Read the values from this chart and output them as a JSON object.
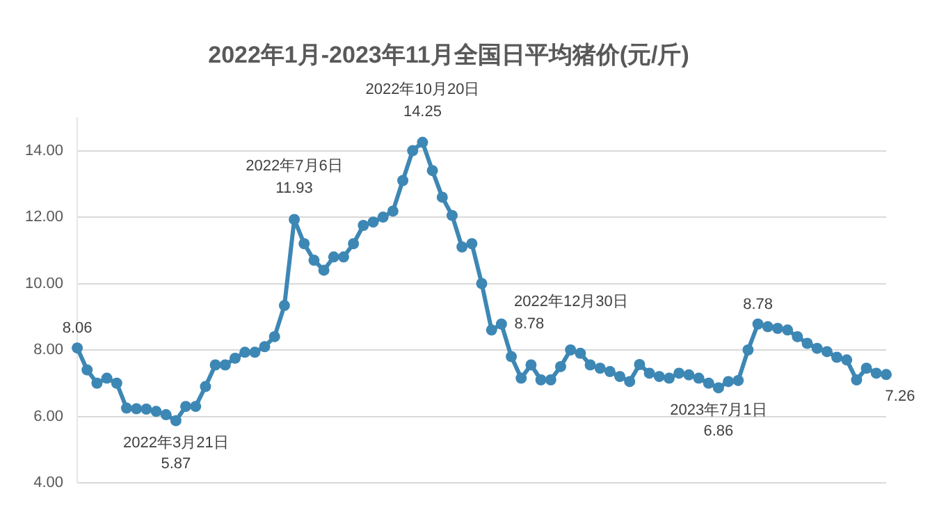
{
  "chart_data": {
    "type": "line",
    "title": "2022年1月-2023年11月全国日平均猪价(元/斤)",
    "categories": [
      null,
      null,
      null,
      null,
      null,
      null,
      null,
      null,
      null,
      null,
      null,
      null,
      null,
      null,
      null,
      null,
      null,
      null,
      null,
      null,
      null,
      null,
      null,
      null,
      null,
      null,
      null,
      null,
      null,
      null,
      null,
      null,
      null,
      null,
      null,
      null,
      null,
      null,
      null,
      null,
      null,
      null,
      null,
      null,
      null,
      null,
      null,
      null,
      null,
      null,
      null,
      null,
      null,
      null,
      null,
      null,
      null,
      null,
      null,
      null,
      null,
      null,
      null,
      null,
      null,
      null,
      null,
      null,
      null,
      null,
      null,
      null,
      null,
      null,
      null,
      null,
      null,
      null,
      null,
      null,
      null,
      null,
      null
    ],
    "values": [
      8.06,
      7.4,
      7.0,
      7.15,
      7.0,
      6.25,
      6.23,
      6.22,
      6.15,
      6.05,
      5.87,
      6.3,
      6.3,
      6.9,
      7.55,
      7.55,
      7.75,
      7.93,
      7.93,
      8.1,
      8.4,
      9.34,
      11.93,
      11.2,
      10.7,
      10.4,
      10.8,
      10.8,
      11.2,
      11.75,
      11.85,
      12.0,
      12.18,
      13.1,
      14.0,
      14.25,
      13.4,
      12.6,
      12.05,
      11.1,
      11.2,
      10.0,
      8.6,
      8.78,
      7.8,
      7.15,
      7.55,
      7.1,
      7.1,
      7.5,
      8.0,
      7.9,
      7.55,
      7.45,
      7.35,
      7.2,
      7.05,
      7.56,
      7.3,
      7.2,
      7.15,
      7.3,
      7.25,
      7.15,
      7.0,
      6.86,
      7.05,
      7.08,
      8.0,
      8.78,
      8.7,
      8.65,
      8.6,
      8.4,
      8.2,
      8.05,
      7.95,
      7.78,
      7.7,
      7.1,
      7.45,
      7.3,
      7.26
    ],
    "value_labels": [
      "8.06",
      null,
      null,
      null,
      null,
      null,
      null,
      null,
      null,
      null,
      "5.87",
      null,
      null,
      null,
      null,
      null,
      null,
      null,
      null,
      null,
      null,
      null,
      "11.93",
      null,
      null,
      null,
      null,
      null,
      null,
      null,
      null,
      null,
      null,
      null,
      null,
      "14.25",
      null,
      null,
      null,
      null,
      null,
      null,
      null,
      "8.78",
      null,
      null,
      null,
      null,
      null,
      null,
      null,
      null,
      null,
      null,
      null,
      null,
      null,
      null,
      null,
      null,
      null,
      null,
      null,
      null,
      null,
      "6.86",
      null,
      null,
      null,
      "8.78",
      null,
      null,
      null,
      null,
      null,
      null,
      null,
      null,
      null,
      null,
      null,
      null,
      "7.26"
    ],
    "annotations": [
      {
        "text": "2022年3月21日",
        "y": 5.87
      },
      {
        "text": "2022年7月6日",
        "y": 11.93
      },
      {
        "text": "2022年10月20日",
        "y": 14.25
      },
      "2022年12月30日",
      {
        "text": "2023年7月1日",
        "y": 6.86
      }
    ],
    "color": "#3d87b5",
    "marker": "circle",
    "grid": "y",
    "legend": false,
    "tick_labels": "y",
    "ylim": [
      4,
      15
    ],
    "yticks": [
      {
        "value": 4,
        "label": "4.00"
      },
      {
        "value": 6,
        "label": "6.00"
      },
      {
        "value": 8,
        "label": "8.00"
      },
      {
        "value": 10,
        "label": "10.00"
      },
      {
        "value": 12,
        "label": "12.00"
      },
      {
        "value": 14,
        "label": "14.00"
      }
    ]
  }
}
